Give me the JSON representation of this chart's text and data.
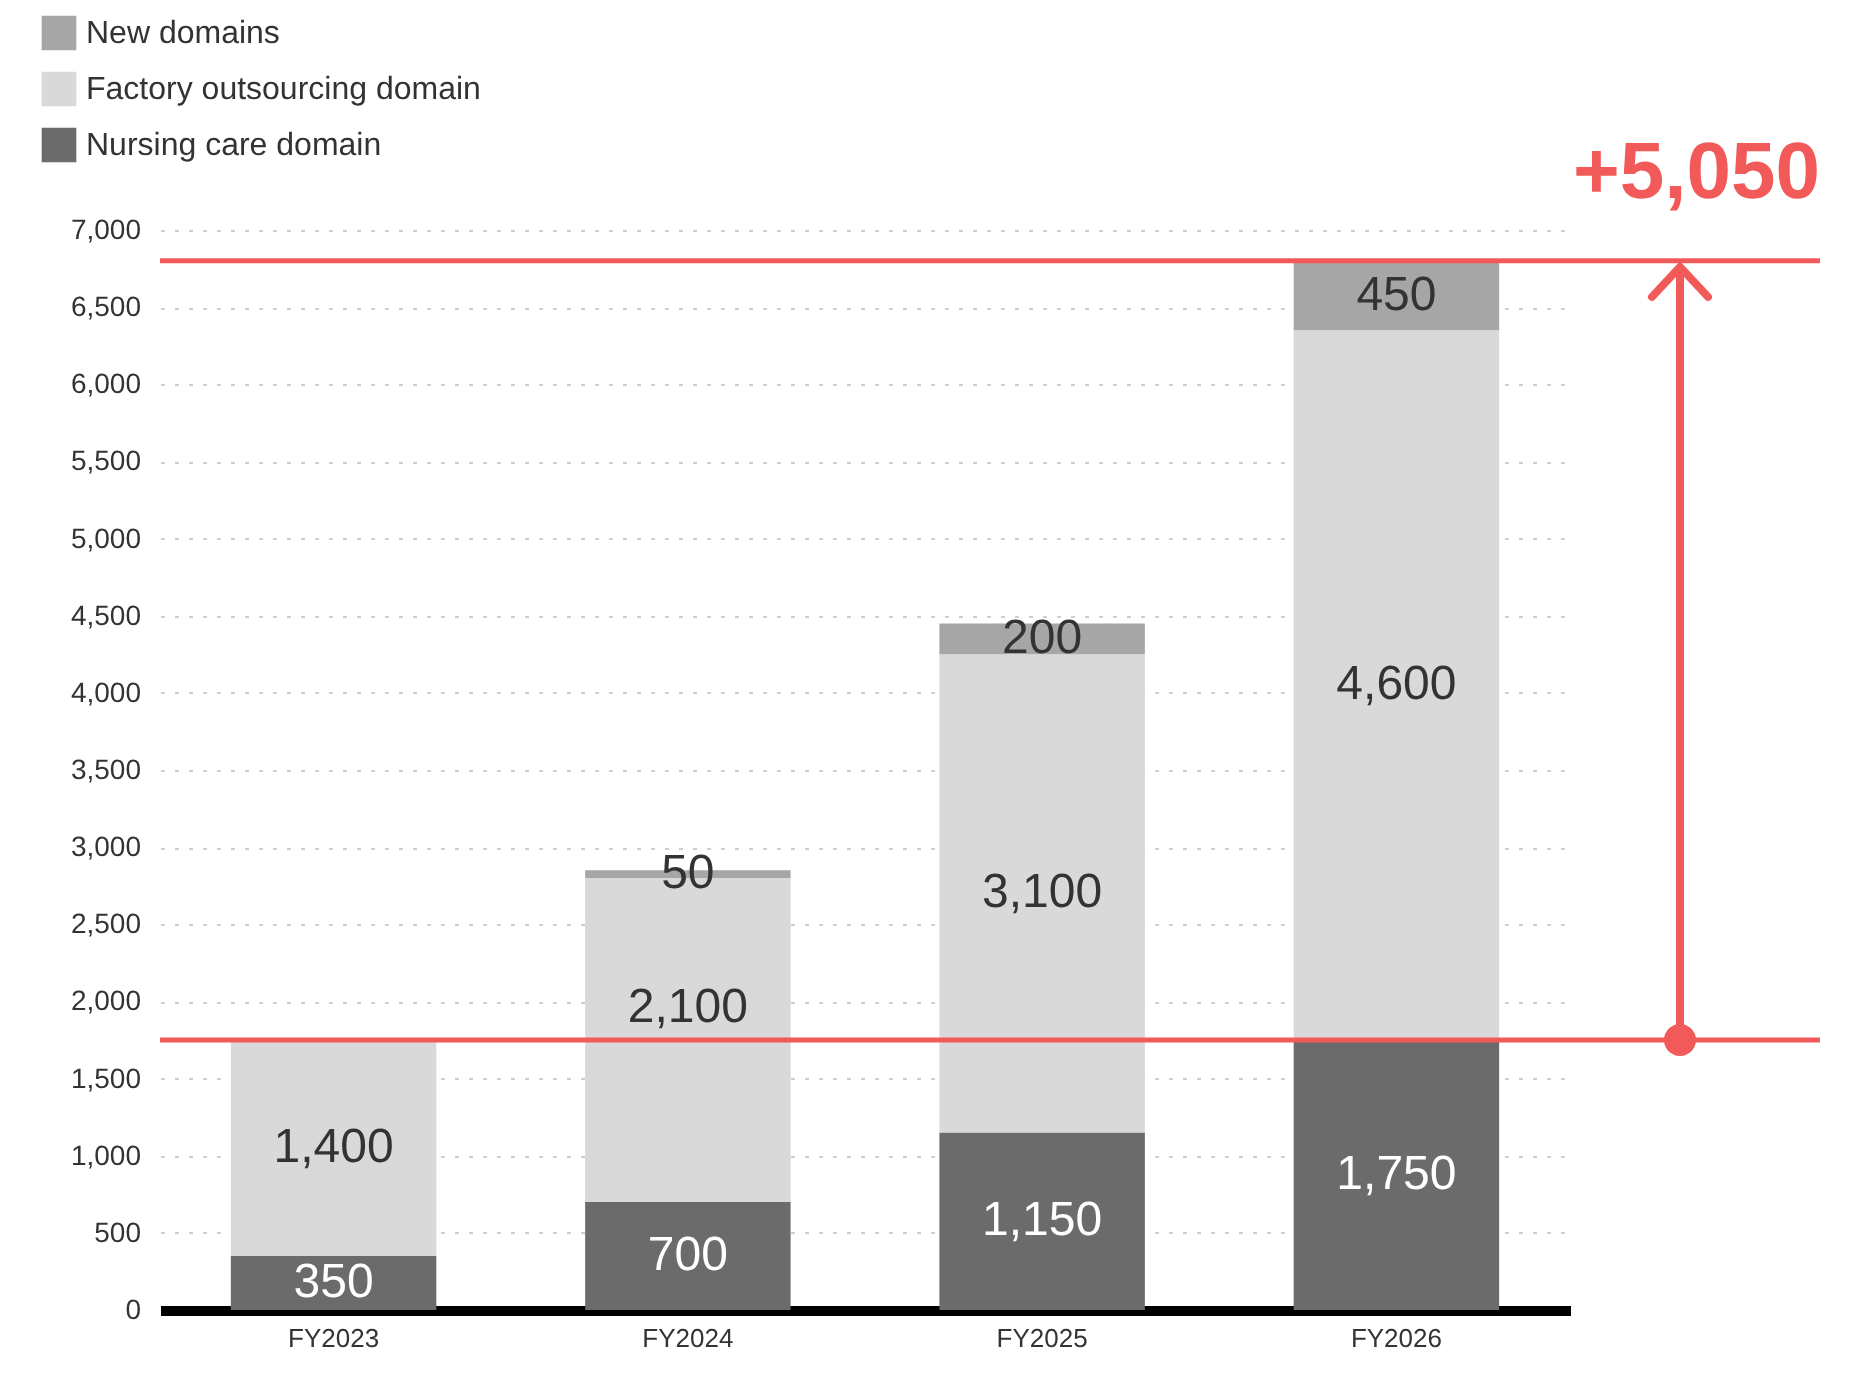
{
  "chart_data": {
    "type": "bar",
    "stacked": true,
    "categories": [
      "FY2023",
      "FY2024",
      "FY2025",
      "FY2026"
    ],
    "series": [
      {
        "name": "Nursing care domain",
        "color": "#6b6b6b",
        "values": [
          350,
          700,
          1150,
          1750
        ],
        "value_labels": [
          "350",
          "700",
          "1,150",
          "1,750"
        ]
      },
      {
        "name": "Factory outsourcing domain",
        "color": "#d9d9d9",
        "values": [
          1400,
          2100,
          3100,
          4600
        ],
        "value_labels": [
          "1,400",
          "2,100",
          "3,100",
          "4,600"
        ]
      },
      {
        "name": "New domains",
        "color": "#a6a6a6",
        "values": [
          null,
          50,
          200,
          450
        ],
        "value_labels": [
          null,
          "50",
          "200",
          "450"
        ]
      }
    ],
    "ylim": [
      0,
      7000
    ],
    "yticks": [
      0,
      500,
      {
        "value": 1000,
        "label": "1,000"
      },
      {
        "value": 1500,
        "label": "1,500"
      },
      {
        "value": 2000,
        "label": "2,000"
      },
      {
        "value": 2500,
        "label": "2,500"
      },
      {
        "value": 3000,
        "label": "3,000"
      },
      {
        "value": 3500,
        "label": "3,500"
      },
      {
        "value": 4000,
        "label": "4,000"
      },
      {
        "value": 4500,
        "label": "4,500"
      },
      {
        "value": 5000,
        "label": "5,000"
      },
      {
        "value": 5500,
        "label": "5,500"
      },
      {
        "value": 6000,
        "label": "6,000"
      },
      {
        "value": 6500,
        "label": "6,500"
      },
      {
        "value": 7000,
        "label": "7,000"
      }
    ],
    "grid": "y",
    "legend": "top left",
    "ref_lines": [
      {
        "axis": "y",
        "value": 1750,
        "color": "#f25a5a"
      },
      {
        "axis": "y",
        "value": 6800,
        "color": "#f25a5a"
      }
    ],
    "annotations": [
      "+5,050"
    ]
  }
}
